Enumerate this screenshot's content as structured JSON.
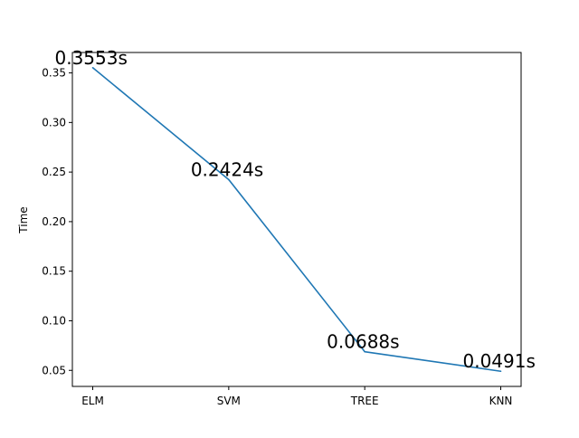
{
  "chart_data": {
    "type": "line",
    "categories": [
      "ELM",
      "SVM",
      "TREE",
      "KNN"
    ],
    "series": [
      {
        "values": [
          0.3553,
          0.2424,
          0.0688,
          0.0491
        ],
        "color": "#1f77b4"
      }
    ],
    "data_labels": [
      "0.3553s",
      "0.2424s",
      "0.0688s",
      "0.0491s"
    ],
    "title": "",
    "xlabel": "",
    "ylabel": "Time",
    "ylim": [
      0.0338,
      0.3706
    ],
    "yticks": [
      0.05,
      0.1,
      0.15,
      0.2,
      0.25,
      0.3,
      0.35
    ],
    "ytick_labels": [
      "0.05",
      "0.10",
      "0.15",
      "0.20",
      "0.25",
      "0.30",
      "0.35"
    ],
    "grid": false,
    "legend": "none"
  }
}
